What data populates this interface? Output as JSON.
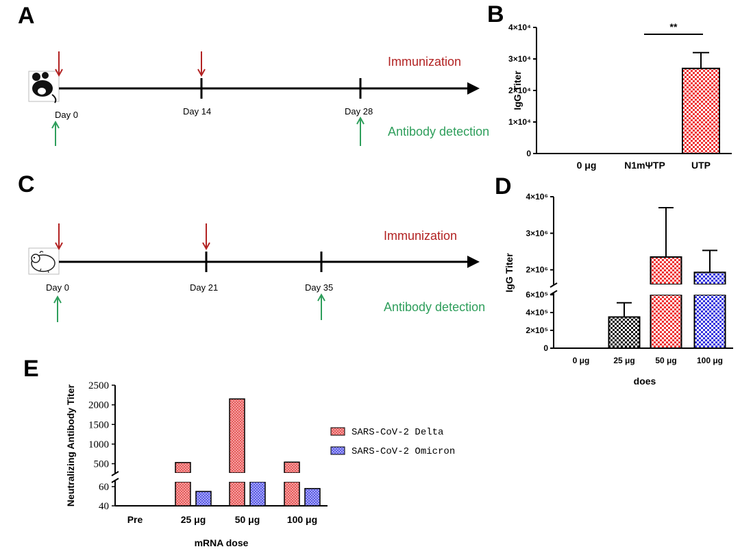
{
  "colors": {
    "immunization": "#b22222",
    "detection": "#2e9e5b",
    "red_bar": "#ee3333",
    "blue_bar": "#3333dd",
    "black_bar": "#111111",
    "delta_bar": "#f08080",
    "omicron_bar": "#8080f0"
  },
  "panels": {
    "A": {
      "letter": "A",
      "immunization_label": "Immunization",
      "detection_label": "Antibody detection",
      "days": [
        "Day 0",
        "Day 14",
        "Day 28"
      ],
      "animal_icon": "mouse-icon"
    },
    "C": {
      "letter": "C",
      "immunization_label": "Immunization",
      "detection_label": "Antibody detection",
      "days": [
        "Day 0",
        "Day 21",
        "Day 35"
      ],
      "animal_icon": "hamster-icon"
    },
    "B": {
      "letter": "B"
    },
    "D": {
      "letter": "D"
    },
    "E": {
      "letter": "E"
    }
  },
  "chart_data": [
    {
      "panel": "B",
      "type": "bar",
      "ylabel": "IgG Titer",
      "xlabel": "",
      "categories": [
        "0 μg",
        "N1mΨTP",
        "UTP"
      ],
      "values": [
        0,
        0,
        27000
      ],
      "errors": [
        0,
        0,
        5000
      ],
      "ylim": [
        0,
        40000
      ],
      "ytick_labels": [
        "0",
        "1×10⁴",
        "2×10⁴",
        "3×10⁴",
        "4×10⁴"
      ],
      "significance": "**",
      "bar_pattern": "checker",
      "bar_colors": [
        "#ee3333",
        "#ee3333",
        "#ee3333"
      ]
    },
    {
      "panel": "D",
      "type": "bar",
      "ylabel": "IgG Titer",
      "xlabel": "does",
      "categories": [
        "0 μg",
        "25 μg",
        "50 μg",
        "100 μg"
      ],
      "values": [
        0,
        350000,
        2350000,
        1930000
      ],
      "errors": [
        0,
        160000,
        1350000,
        600000
      ],
      "axis_break": [
        600000,
        1600000
      ],
      "ylim": [
        0,
        4000000
      ],
      "ytick_labels": [
        "0",
        "2×10⁵",
        "4×10⁵",
        "6×10⁵",
        "2×10⁶",
        "3×10⁶",
        "4×10⁶"
      ],
      "bar_pattern": "checker",
      "bar_colors": [
        "#111111",
        "#111111",
        "#ee3333",
        "#3333dd"
      ]
    },
    {
      "panel": "E",
      "type": "bar",
      "ylabel": "Neutralizing Antibody Titer",
      "xlabel": "mRNA dose",
      "categories": [
        "Pre",
        "25 μg",
        "50 μg",
        "100 μg"
      ],
      "series": [
        {
          "name": "SARS-CoV-2 Delta",
          "values": [
            40,
            530,
            2150,
            540
          ]
        },
        {
          "name": "SARS-CoV-2 Omicron",
          "values": [
            40,
            55,
            200,
            58
          ]
        }
      ],
      "axis_break": [
        65,
        300
      ],
      "ylim": [
        40,
        2500
      ],
      "ytick_labels": [
        "40",
        "60",
        "500",
        "1000",
        "1500",
        "2000",
        "2500"
      ],
      "legend": "right",
      "bar_pattern": "dots"
    }
  ]
}
